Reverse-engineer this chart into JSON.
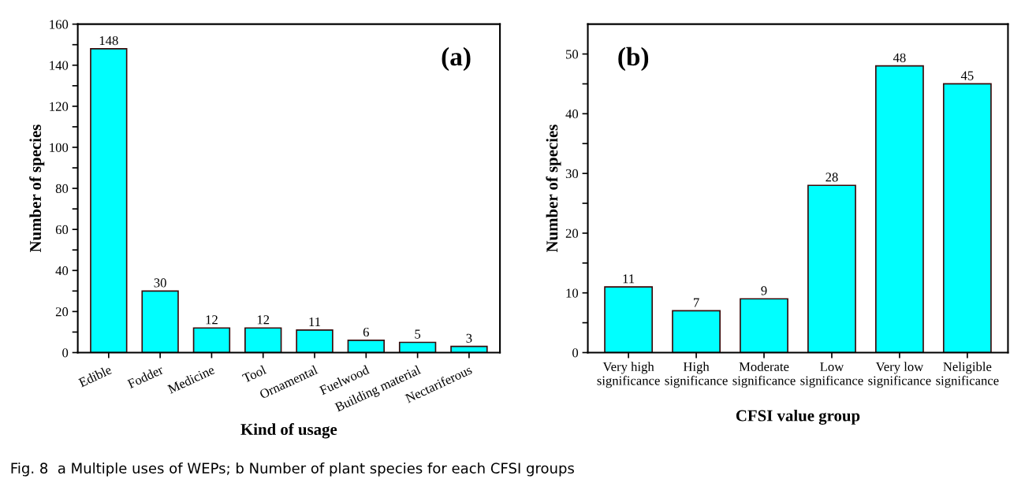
{
  "chart_data": [
    {
      "type": "bar",
      "xlabel": "Kind of usage",
      "ylabel": "Number of species",
      "categories": [
        "Edible",
        "Fodder",
        "Medicine",
        "Tool",
        "Ornamental",
        "Fuelwood",
        "Building material",
        "Nectariferous"
      ],
      "values": [
        148,
        30,
        12,
        12,
        11,
        6,
        5,
        3
      ],
      "color": "#00ffff",
      "data_labels": true,
      "ylim": [
        0,
        160
      ],
      "yticks": [
        0,
        {
          "value": 10,
          "label": null
        },
        20,
        {
          "value": 30,
          "label": null
        },
        40,
        {
          "value": 50,
          "label": null
        },
        60,
        {
          "value": 70,
          "label": null
        },
        80,
        {
          "value": 90,
          "label": null
        },
        100,
        {
          "value": 110,
          "label": null
        },
        120,
        {
          "value": 130,
          "label": null
        },
        140,
        {
          "value": 150,
          "label": null
        },
        160
      ],
      "grid": false,
      "annotations": [
        "(a)",
        "Fig. 8  a Multiple uses of WEPs; b Number of plant species for each CFSI groups"
      ]
    },
    {
      "type": "bar",
      "xlabel": "CFSI value group",
      "ylabel": "Number of species",
      "categories": [
        "Very high\nsignificance",
        "High\nsignificance",
        "Moderate\nsignificance",
        "Low\nsignificance",
        "Very low\nsignificance",
        "Neligible\nsignificance"
      ],
      "values": [
        11,
        7,
        9,
        28,
        48,
        45
      ],
      "color": "#00ffff",
      "data_labels": true,
      "ylim": [
        0,
        55
      ],
      "yticks": [
        0,
        {
          "value": 5,
          "label": null
        },
        10,
        {
          "value": 15,
          "label": null
        },
        20,
        {
          "value": 25,
          "label": null
        },
        30,
        {
          "value": 35,
          "label": null
        },
        40,
        {
          "value": 45,
          "label": null
        },
        50
      ],
      "grid": false,
      "annotations": [
        "(b)"
      ]
    }
  ]
}
